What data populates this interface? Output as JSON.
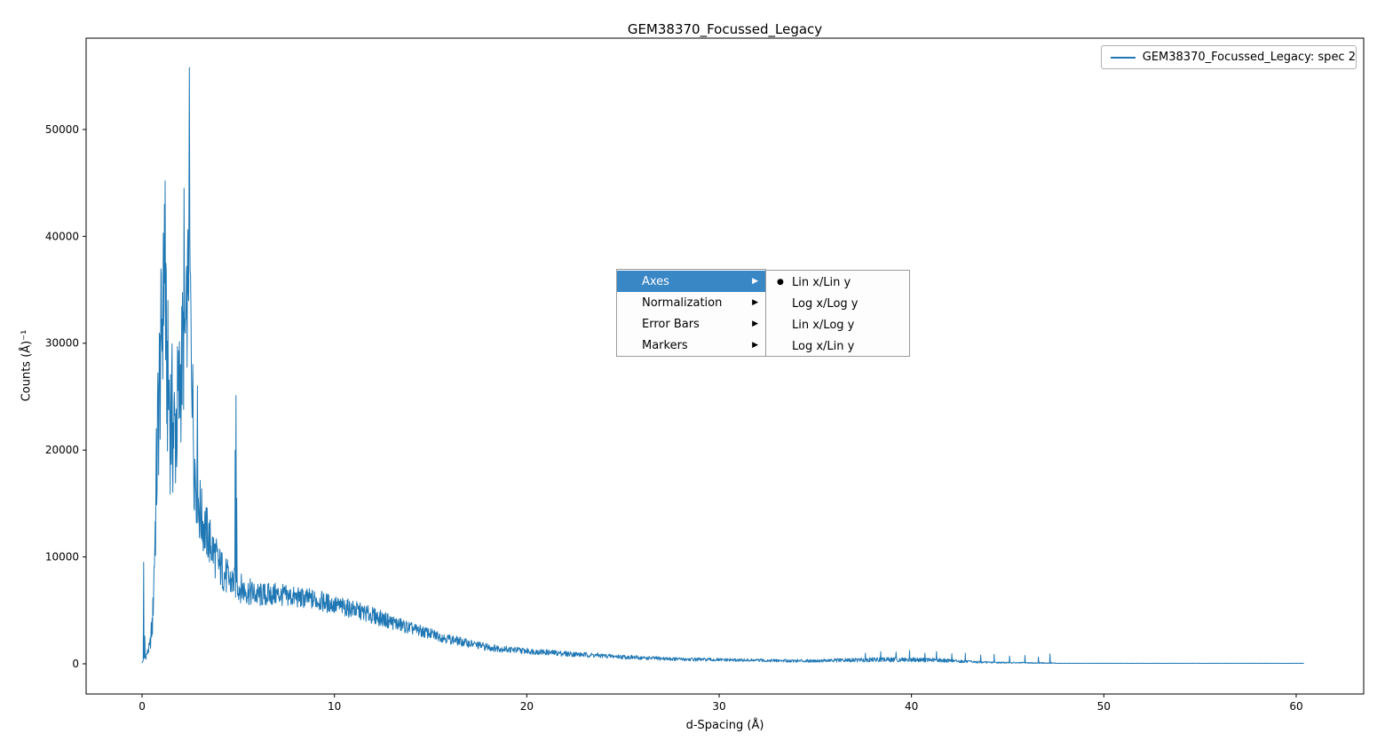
{
  "chart": {
    "title": "GEM38370_Focussed_Legacy",
    "xlabel": "d-Spacing (Å)",
    "ylabel": "Counts (Å)⁻¹"
  },
  "legend": {
    "label": "GEM38370_Focussed_Legacy: spec 2",
    "line_color": "#1f77b4"
  },
  "context_menu": {
    "arrow_glyph": "▶",
    "highlight_color": "#3a87c6",
    "items": [
      {
        "label": "Axes",
        "highlighted": true
      },
      {
        "label": "Normalization",
        "highlighted": false
      },
      {
        "label": "Error Bars",
        "highlighted": false
      },
      {
        "label": "Markers",
        "highlighted": false
      }
    ],
    "submenu": {
      "items": [
        {
          "label": "Lin x/Lin y",
          "marker": "●",
          "selected": true
        },
        {
          "label": "Log x/Log y",
          "marker": "",
          "selected": false
        },
        {
          "label": "Lin x/Log y",
          "marker": "",
          "selected": false
        },
        {
          "label": "Log x/Lin y",
          "marker": "",
          "selected": false
        }
      ]
    }
  },
  "chart_data": {
    "type": "line",
    "title": "GEM38370_Focussed_Legacy",
    "xlabel": "d-Spacing (Å)",
    "ylabel": "Counts (Å)⁻¹",
    "xlim": [
      -2.91,
      63.51
    ],
    "ylim": [
      -2823,
      58545
    ],
    "xticks": [
      0,
      10,
      20,
      30,
      40,
      50,
      60
    ],
    "yticks": [
      0,
      10000,
      20000,
      30000,
      40000,
      50000
    ],
    "grid": false,
    "legend_position": "upper right",
    "series": [
      {
        "name": "GEM38370_Focussed_Legacy: spec 2",
        "color": "#1f77b4",
        "x_range": [
          0,
          60.4
        ],
        "sample_step": 0.02,
        "envelope": [
          [
            0.0,
            100,
            60
          ],
          [
            0.2,
            700,
            300
          ],
          [
            0.4,
            1600,
            600
          ],
          [
            0.55,
            4000,
            1600
          ],
          [
            0.7,
            14000,
            5000
          ],
          [
            0.85,
            24000,
            8000
          ],
          [
            1.0,
            30000,
            8000
          ],
          [
            1.15,
            36000,
            7500
          ],
          [
            1.3,
            27000,
            8000
          ],
          [
            1.5,
            23000,
            8000
          ],
          [
            1.7,
            21500,
            7000
          ],
          [
            1.9,
            24500,
            7000
          ],
          [
            2.1,
            29000,
            7000
          ],
          [
            2.3,
            31000,
            6000
          ],
          [
            2.45,
            40000,
            6000
          ],
          [
            2.55,
            31000,
            5000
          ],
          [
            2.7,
            19500,
            5000
          ],
          [
            2.9,
            15500,
            4000
          ],
          [
            3.1,
            13500,
            3000
          ],
          [
            3.5,
            11500,
            2500
          ],
          [
            4.0,
            9200,
            2000
          ],
          [
            4.5,
            7800,
            1800
          ],
          [
            4.85,
            7500,
            1500
          ],
          [
            5.2,
            7000,
            1400
          ],
          [
            6.0,
            6400,
            1200
          ],
          [
            7.0,
            6500,
            1100
          ],
          [
            8.0,
            6200,
            1000
          ],
          [
            9.0,
            6000,
            1000
          ],
          [
            10.0,
            5500,
            900
          ],
          [
            11.0,
            5100,
            850
          ],
          [
            12.0,
            4500,
            800
          ],
          [
            13.0,
            3900,
            700
          ],
          [
            14.0,
            3300,
            600
          ],
          [
            15.0,
            2800,
            520
          ],
          [
            16.0,
            2300,
            460
          ],
          [
            17.0,
            1900,
            400
          ],
          [
            18.0,
            1550,
            360
          ],
          [
            19.0,
            1350,
            320
          ],
          [
            20.0,
            1200,
            290
          ],
          [
            22.0,
            950,
            260
          ],
          [
            24.0,
            750,
            220
          ],
          [
            26.0,
            550,
            190
          ],
          [
            28.0,
            430,
            160
          ],
          [
            30.0,
            370,
            150
          ],
          [
            32.0,
            320,
            140
          ],
          [
            34.0,
            280,
            140
          ],
          [
            36.0,
            310,
            170
          ],
          [
            38.0,
            390,
            210
          ],
          [
            40.0,
            390,
            210
          ],
          [
            41.5,
            340,
            190
          ],
          [
            43.0,
            190,
            110
          ],
          [
            44.0,
            130,
            80
          ],
          [
            45.0,
            110,
            65
          ],
          [
            46.0,
            90,
            55
          ],
          [
            47.3,
            70,
            45
          ],
          [
            47.6,
            45,
            6
          ],
          [
            60.4,
            45,
            6
          ]
        ],
        "peaks": [
          [
            0.08,
            9500
          ],
          [
            0.14,
            2600
          ],
          [
            1.16,
            43000
          ],
          [
            1.2,
            45200
          ],
          [
            2.17,
            44500
          ],
          [
            2.45,
            55800
          ],
          [
            2.88,
            26000
          ],
          [
            4.83,
            20000
          ],
          [
            4.87,
            25100
          ],
          [
            4.91,
            15500
          ],
          [
            37.6,
            1000
          ],
          [
            38.4,
            1150
          ],
          [
            39.2,
            1100
          ],
          [
            39.9,
            1250
          ],
          [
            40.7,
            1000
          ],
          [
            41.3,
            1150
          ],
          [
            42.1,
            950
          ],
          [
            42.8,
            1000
          ],
          [
            43.6,
            820
          ],
          [
            44.3,
            880
          ],
          [
            45.1,
            730
          ],
          [
            45.9,
            780
          ],
          [
            46.6,
            640
          ],
          [
            47.2,
            920
          ]
        ]
      }
    ]
  }
}
